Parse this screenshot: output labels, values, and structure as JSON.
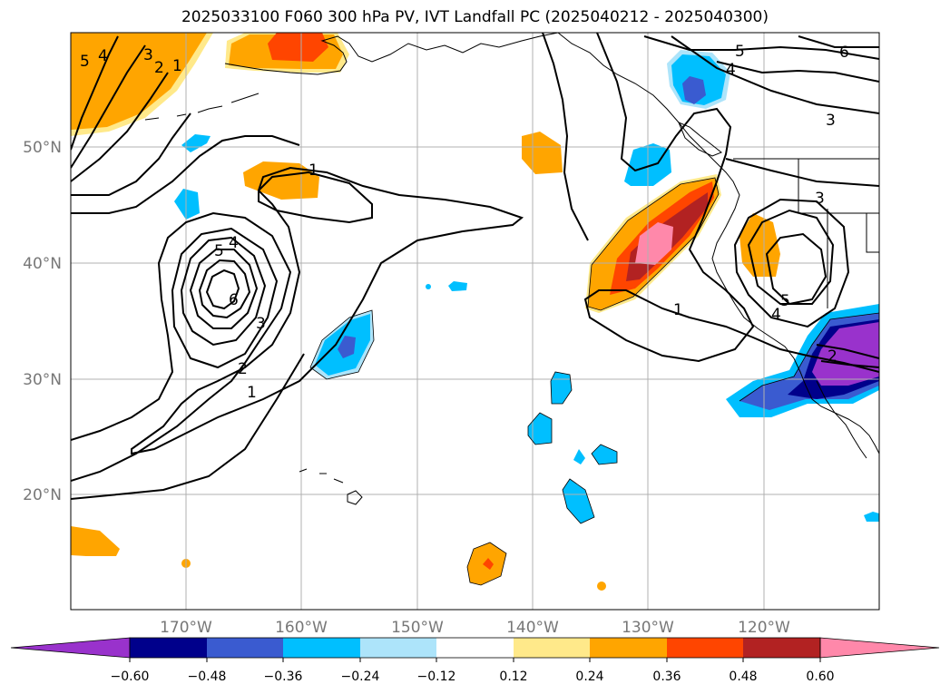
{
  "title": "2025033100 F060 300 hPa PV, IVT Landfall PC (2025040212 - 2025040300)",
  "lat_labels": [
    "50°N",
    "40°N",
    "30°N",
    "20°N"
  ],
  "lon_labels": [
    "170°W",
    "160°W",
    "150°W",
    "140°W",
    "130°W",
    "120°W"
  ],
  "colorbar": {
    "ticks": [
      "−0.60",
      "−0.48",
      "−0.36",
      "−0.24",
      "−0.12",
      "0.12",
      "0.24",
      "0.36",
      "0.48",
      "0.60"
    ],
    "colors": [
      "#9932cc",
      "#00008b",
      "#3a5bd0",
      "#00bfff",
      "#ade4fa",
      "#ffffff",
      "#ffe98a",
      "#ffa500",
      "#ff4500",
      "#b22222",
      "#ff88aa"
    ]
  },
  "contour_labels": [
    "5",
    "4",
    "3",
    "2",
    "1",
    "1",
    "5",
    "4",
    "6",
    "3",
    "2",
    "1",
    "5",
    "4",
    "6",
    "3",
    "3",
    "1",
    "5",
    "4",
    "2"
  ]
}
